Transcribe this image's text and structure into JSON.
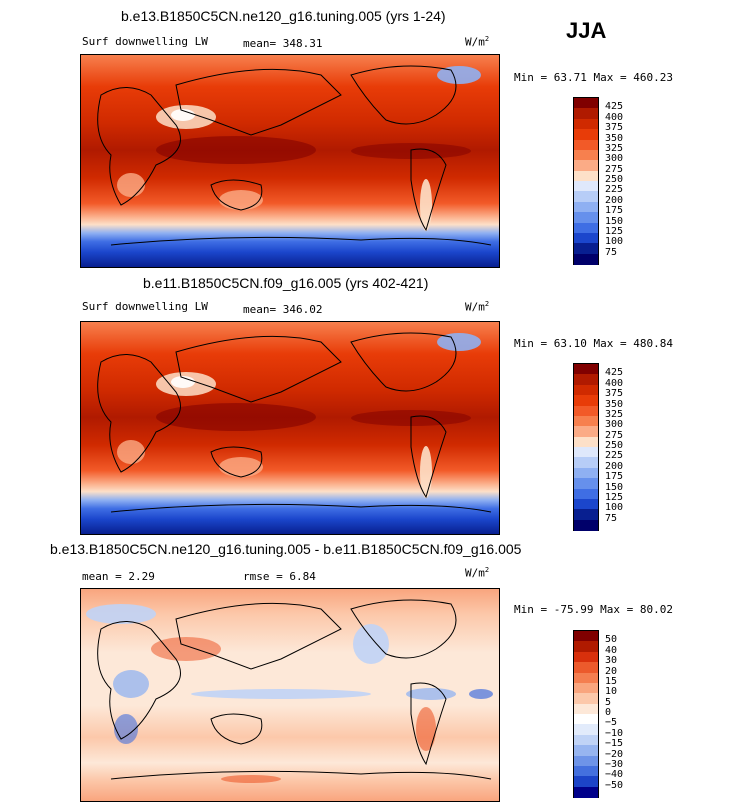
{
  "season": "JJA",
  "panels": [
    {
      "title": "b.e13.B1850C5CN.ne120_g16.tuning.005 (yrs 1-24)",
      "field": "Surf downwelling LW",
      "mean_label": "mean=",
      "mean": "348.31",
      "units": "W/m",
      "units_exp": "2",
      "min_label": "Min =",
      "min": "63.71",
      "max_label": "Max =",
      "max": "460.23"
    },
    {
      "title": "b.e11.B1850C5CN.f09_g16.005 (yrs 402-421)",
      "field": "Surf downwelling LW",
      "mean_label": "mean=",
      "mean": "346.02",
      "units": "W/m",
      "units_exp": "2",
      "min_label": "Min =",
      "min": "63.10",
      "max_label": "Max =",
      "max": "480.84"
    },
    {
      "title": "b.e13.B1850C5CN.ne120_g16.tuning.005 - b.e11.B1850C5CN.f09_g16.005",
      "mean_label": "mean =",
      "mean": "2.29",
      "rmse_label": "rmse =",
      "rmse": "6.84",
      "units": "W/m",
      "units_exp": "2",
      "min_label": "Min =",
      "min": "-75.99",
      "max_label": "Max =",
      "max": "80.02"
    }
  ],
  "chart_data": [
    {
      "type": "heatmap",
      "title": "b.e13.B1850C5CN.ne120_g16.tuning.005 (yrs 1-24)",
      "variable": "Surf downwelling LW",
      "units": "W/m2",
      "mean": 348.31,
      "min": 63.71,
      "max": 460.23,
      "colorbar_levels": [
        "425",
        "400",
        "375",
        "350",
        "325",
        "300",
        "275",
        "250",
        "225",
        "200",
        "175",
        "150",
        "125",
        "100",
        "75"
      ],
      "colors": [
        "#800000",
        "#b01a00",
        "#d02a00",
        "#e83c08",
        "#f25a28",
        "#f7804e",
        "#fbab86",
        "#fde0c8",
        "#dfe8fb",
        "#b7cdf7",
        "#8fb0f2",
        "#6690ec",
        "#3f6ee4",
        "#1b46cc",
        "#081f90",
        "#00006a"
      ]
    },
    {
      "type": "heatmap",
      "title": "b.e11.B1850C5CN.f09_g16.005 (yrs 402-421)",
      "variable": "Surf downwelling LW",
      "units": "W/m2",
      "mean": 346.02,
      "min": 63.1,
      "max": 480.84,
      "colorbar_levels": [
        "425",
        "400",
        "375",
        "350",
        "325",
        "300",
        "275",
        "250",
        "225",
        "200",
        "175",
        "150",
        "125",
        "100",
        "75"
      ],
      "colors": [
        "#800000",
        "#b01a00",
        "#d02a00",
        "#e83c08",
        "#f25a28",
        "#f7804e",
        "#fbab86",
        "#fde0c8",
        "#dfe8fb",
        "#b7cdf7",
        "#8fb0f2",
        "#6690ec",
        "#3f6ee4",
        "#1b46cc",
        "#081f90",
        "#00006a"
      ]
    },
    {
      "type": "heatmap",
      "title": "b.e13.B1850C5CN.ne120_g16.tuning.005 - b.e11.B1850C5CN.f09_g16.005",
      "units": "W/m2",
      "mean": 2.29,
      "rmse": 6.84,
      "min": -75.99,
      "max": 80.02,
      "colorbar_levels": [
        "50",
        "40",
        "30",
        "20",
        "15",
        "10",
        "5",
        "0",
        "−5",
        "−10",
        "−15",
        "−20",
        "−30",
        "−40",
        "−50"
      ],
      "colors": [
        "#800000",
        "#b01a00",
        "#d8300c",
        "#ec5a2c",
        "#f47e50",
        "#f9a57e",
        "#fcc8aa",
        "#fde8d8",
        "#ffffff",
        "#e2ebfb",
        "#c0d3f6",
        "#97b5f0",
        "#6e94e8",
        "#4470de",
        "#1c44c8",
        "#00008a"
      ]
    }
  ]
}
